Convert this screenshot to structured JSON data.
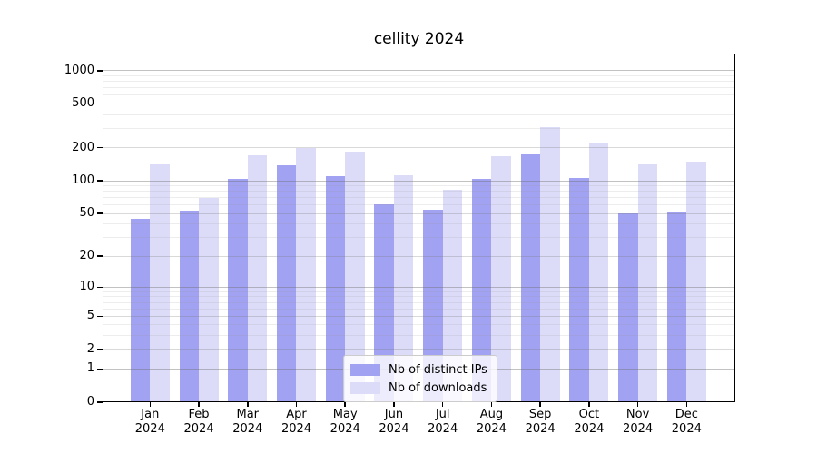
{
  "title": "cellity 2024",
  "chart_data": {
    "type": "bar",
    "title": "cellity 2024",
    "categories": [
      "Jan",
      "Feb",
      "Mar",
      "Apr",
      "May",
      "Jun",
      "Jul",
      "Aug",
      "Sep",
      "Oct",
      "Nov",
      "Dec"
    ],
    "xlabel_year": "2024",
    "series": [
      {
        "name": "Nb of distinct IPs",
        "color": "#a2a2f2",
        "values": [
          45,
          53,
          104,
          138,
          110,
          61,
          54,
          104,
          173,
          107,
          50,
          52
        ]
      },
      {
        "name": "Nb of downloads",
        "color": "#dcdcf9",
        "values": [
          140,
          70,
          170,
          199,
          186,
          112,
          83,
          166,
          305,
          224,
          142,
          150
        ]
      }
    ],
    "y_scale": "log10(value+1)",
    "y_ticks": [
      0,
      1,
      2,
      5,
      10,
      20,
      50,
      100,
      200,
      500,
      1000
    ],
    "ylim": [
      0,
      1300
    ],
    "grid": "both",
    "legend_position": "lower center"
  }
}
